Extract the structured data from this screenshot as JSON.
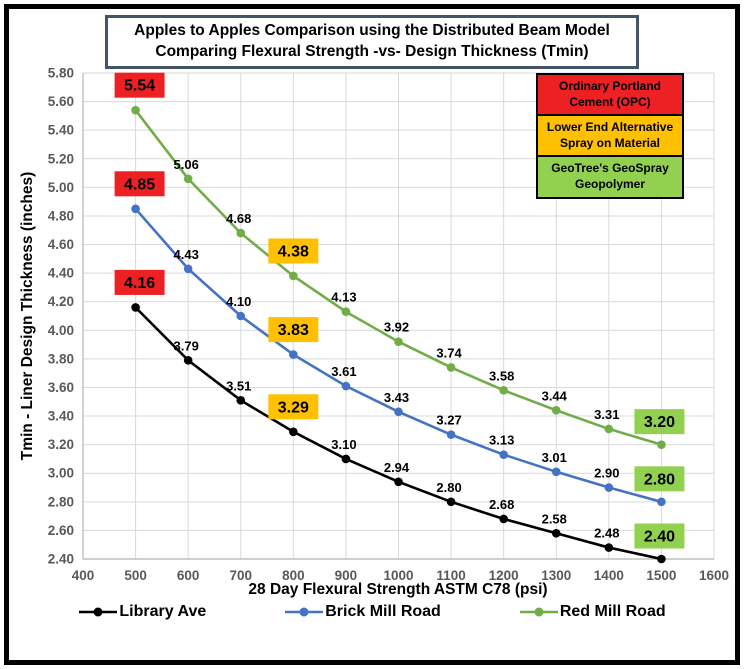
{
  "title": "Apples to Apples Comparison using the Distributed Beam Model Comparing Flexural Strength -vs- Design Thickness (Tmin)",
  "legend_boxes": [
    {
      "label": "Ordinary Portland Cement (OPC)",
      "color": "#ED2024"
    },
    {
      "label": "Lower End Alternative Spray on Material",
      "color": "#FFC000"
    },
    {
      "label": "GeoTree's GeoSpray Geopolymer",
      "color": "#92D050"
    }
  ],
  "chart_data": {
    "type": "line",
    "title": "Apples to Apples Comparison using the Distributed Beam Model Comparing Flexural Strength -vs- Design Thickness (Tmin)",
    "xlabel": "28 Day Flexural Strength ASTM C78 (psi)",
    "ylabel": "Tmin - Liner Design Thickness (inches)",
    "xlim": [
      400,
      1600
    ],
    "ylim": [
      2.4,
      5.8
    ],
    "x_ticks": [
      400,
      500,
      600,
      700,
      800,
      900,
      1000,
      1100,
      1200,
      1300,
      1400,
      1500,
      1600
    ],
    "y_ticks": [
      "2.40",
      "2.60",
      "2.80",
      "3.00",
      "3.20",
      "3.40",
      "3.60",
      "3.80",
      "4.00",
      "4.20",
      "4.40",
      "4.60",
      "4.80",
      "5.00",
      "5.20",
      "5.40",
      "5.60",
      "5.80"
    ],
    "grid": true,
    "legend_position": "bottom",
    "x": [
      500,
      600,
      700,
      800,
      900,
      1000,
      1100,
      1200,
      1300,
      1400,
      1500
    ],
    "series": [
      {
        "name": "Library Ave",
        "color": "#000000",
        "values": [
          4.16,
          3.79,
          3.51,
          3.29,
          3.1,
          2.94,
          2.8,
          2.68,
          2.58,
          2.48,
          2.4
        ]
      },
      {
        "name": "Brick Mill Road",
        "color": "#4472C4",
        "values": [
          4.85,
          4.43,
          4.1,
          3.83,
          3.61,
          3.43,
          3.27,
          3.13,
          3.01,
          2.9,
          2.8
        ]
      },
      {
        "name": "Red Mill Road",
        "color": "#70AD47",
        "values": [
          5.54,
          5.06,
          4.68,
          4.38,
          4.13,
          3.92,
          3.74,
          3.58,
          3.44,
          3.31,
          3.2
        ]
      }
    ],
    "label_highlights": [
      {
        "x_index": 0,
        "color": "#ED2024"
      },
      {
        "x_index": 3,
        "color": "#FFC000"
      },
      {
        "x_index": 10,
        "color": "#92D050"
      }
    ]
  },
  "colors": {
    "grid": "#D9D9D9",
    "axis_line": "#BFBFBF",
    "tick_text": "#595959",
    "title_border": "#44546A",
    "frame_border": "#000000"
  }
}
